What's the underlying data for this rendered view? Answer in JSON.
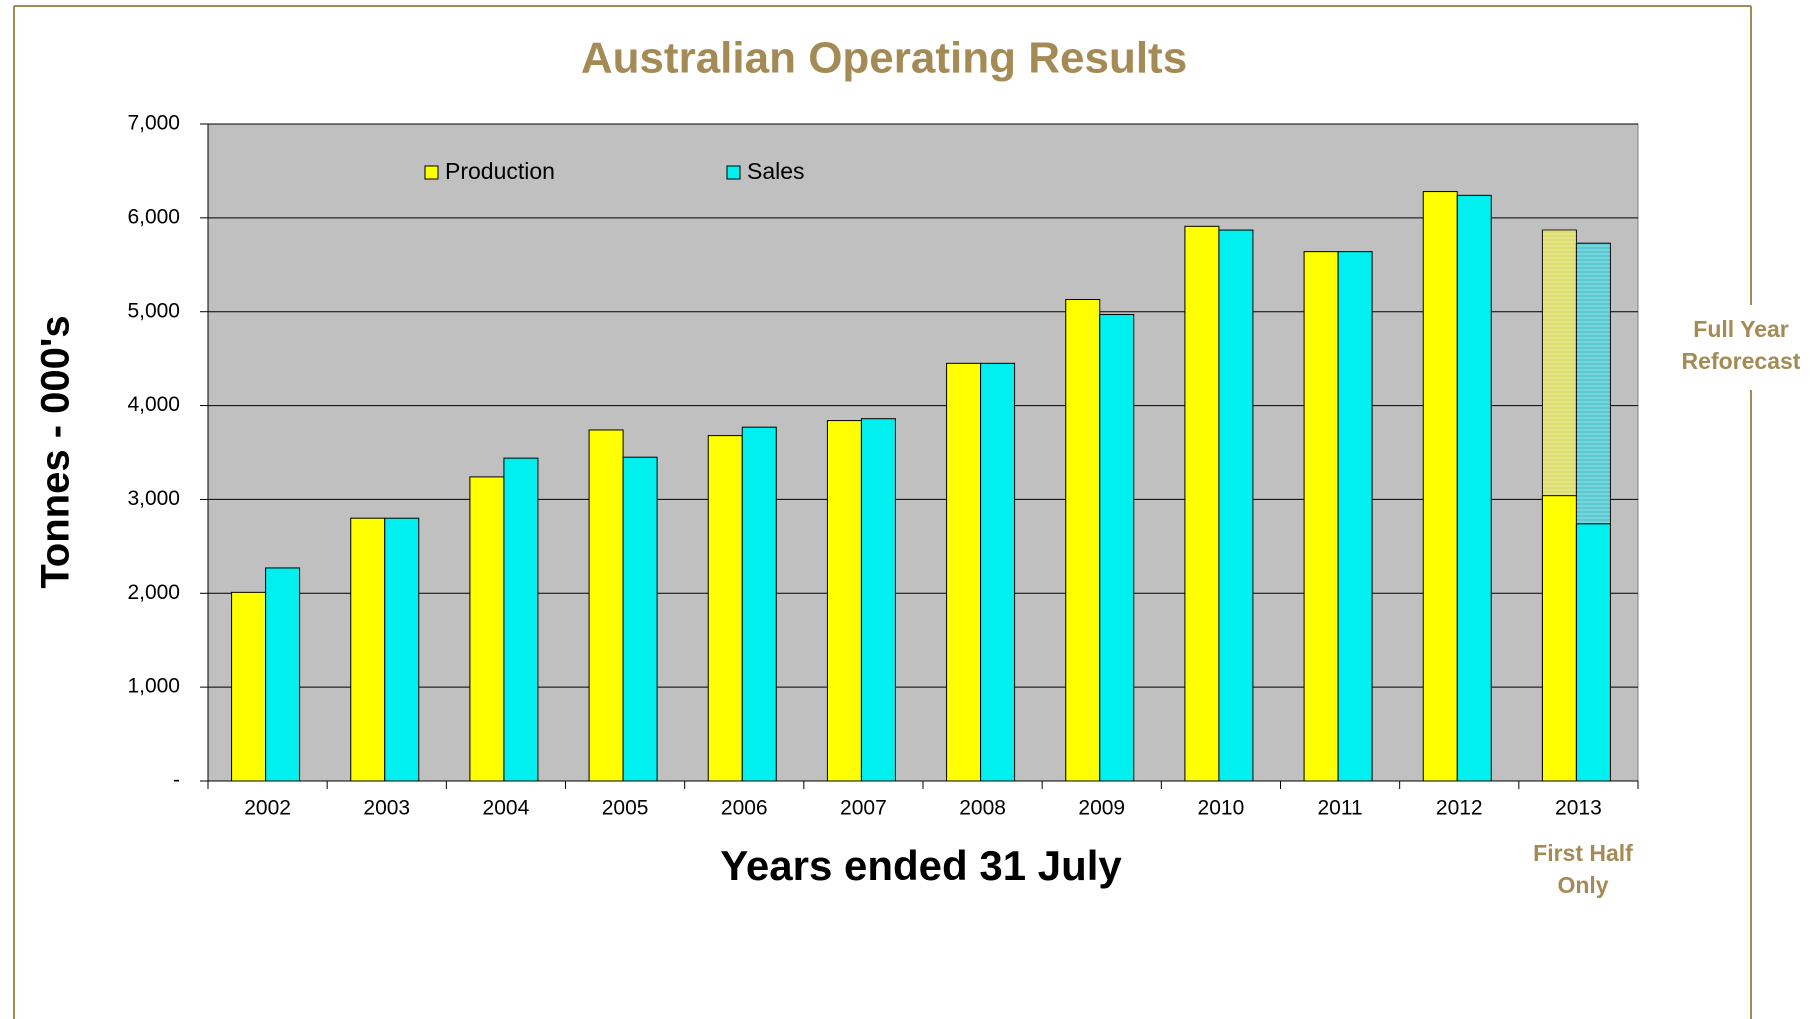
{
  "chart_data": {
    "type": "bar",
    "title": "Australian Operating Results",
    "x_label": "Years ended 31 July",
    "y_label": "Tonnes - 000's",
    "categories": [
      "2002",
      "2003",
      "2004",
      "2005",
      "2006",
      "2007",
      "2008",
      "2009",
      "2010",
      "2011",
      "2012",
      "2013"
    ],
    "series": [
      {
        "name": "Production",
        "color": "#ffff00",
        "forecast_color": "#dede70",
        "values": [
          2010,
          2800,
          3240,
          3740,
          3680,
          3840,
          4450,
          5130,
          5910,
          5640,
          6280,
          3040
        ],
        "forecast": [
          null,
          null,
          null,
          null,
          null,
          null,
          null,
          null,
          null,
          null,
          null,
          5870
        ]
      },
      {
        "name": "Sales",
        "color": "#00f0f0",
        "forecast_color": "#5ccad2",
        "values": [
          2270,
          2800,
          3440,
          3450,
          3770,
          3860,
          4450,
          4970,
          5870,
          5640,
          6240,
          2740
        ],
        "forecast": [
          null,
          null,
          null,
          null,
          null,
          null,
          null,
          null,
          null,
          null,
          null,
          5730
        ]
      }
    ],
    "ylim": [
      0,
      7000
    ],
    "yticks": [
      {
        "value": 0,
        "label": "-"
      },
      {
        "value": 1000,
        "label": "1,000"
      },
      {
        "value": 2000,
        "label": "2,000"
      },
      {
        "value": 3000,
        "label": "3,000"
      },
      {
        "value": 4000,
        "label": "4,000"
      },
      {
        "value": 5000,
        "label": "5,000"
      },
      {
        "value": 6000,
        "label": "6,000"
      },
      {
        "value": 7000,
        "label": "7,000"
      }
    ],
    "grid": true,
    "legend": "top",
    "annotations": [
      {
        "text": "Full Year Reforecast"
      },
      {
        "text": "First Half Only"
      }
    ]
  }
}
